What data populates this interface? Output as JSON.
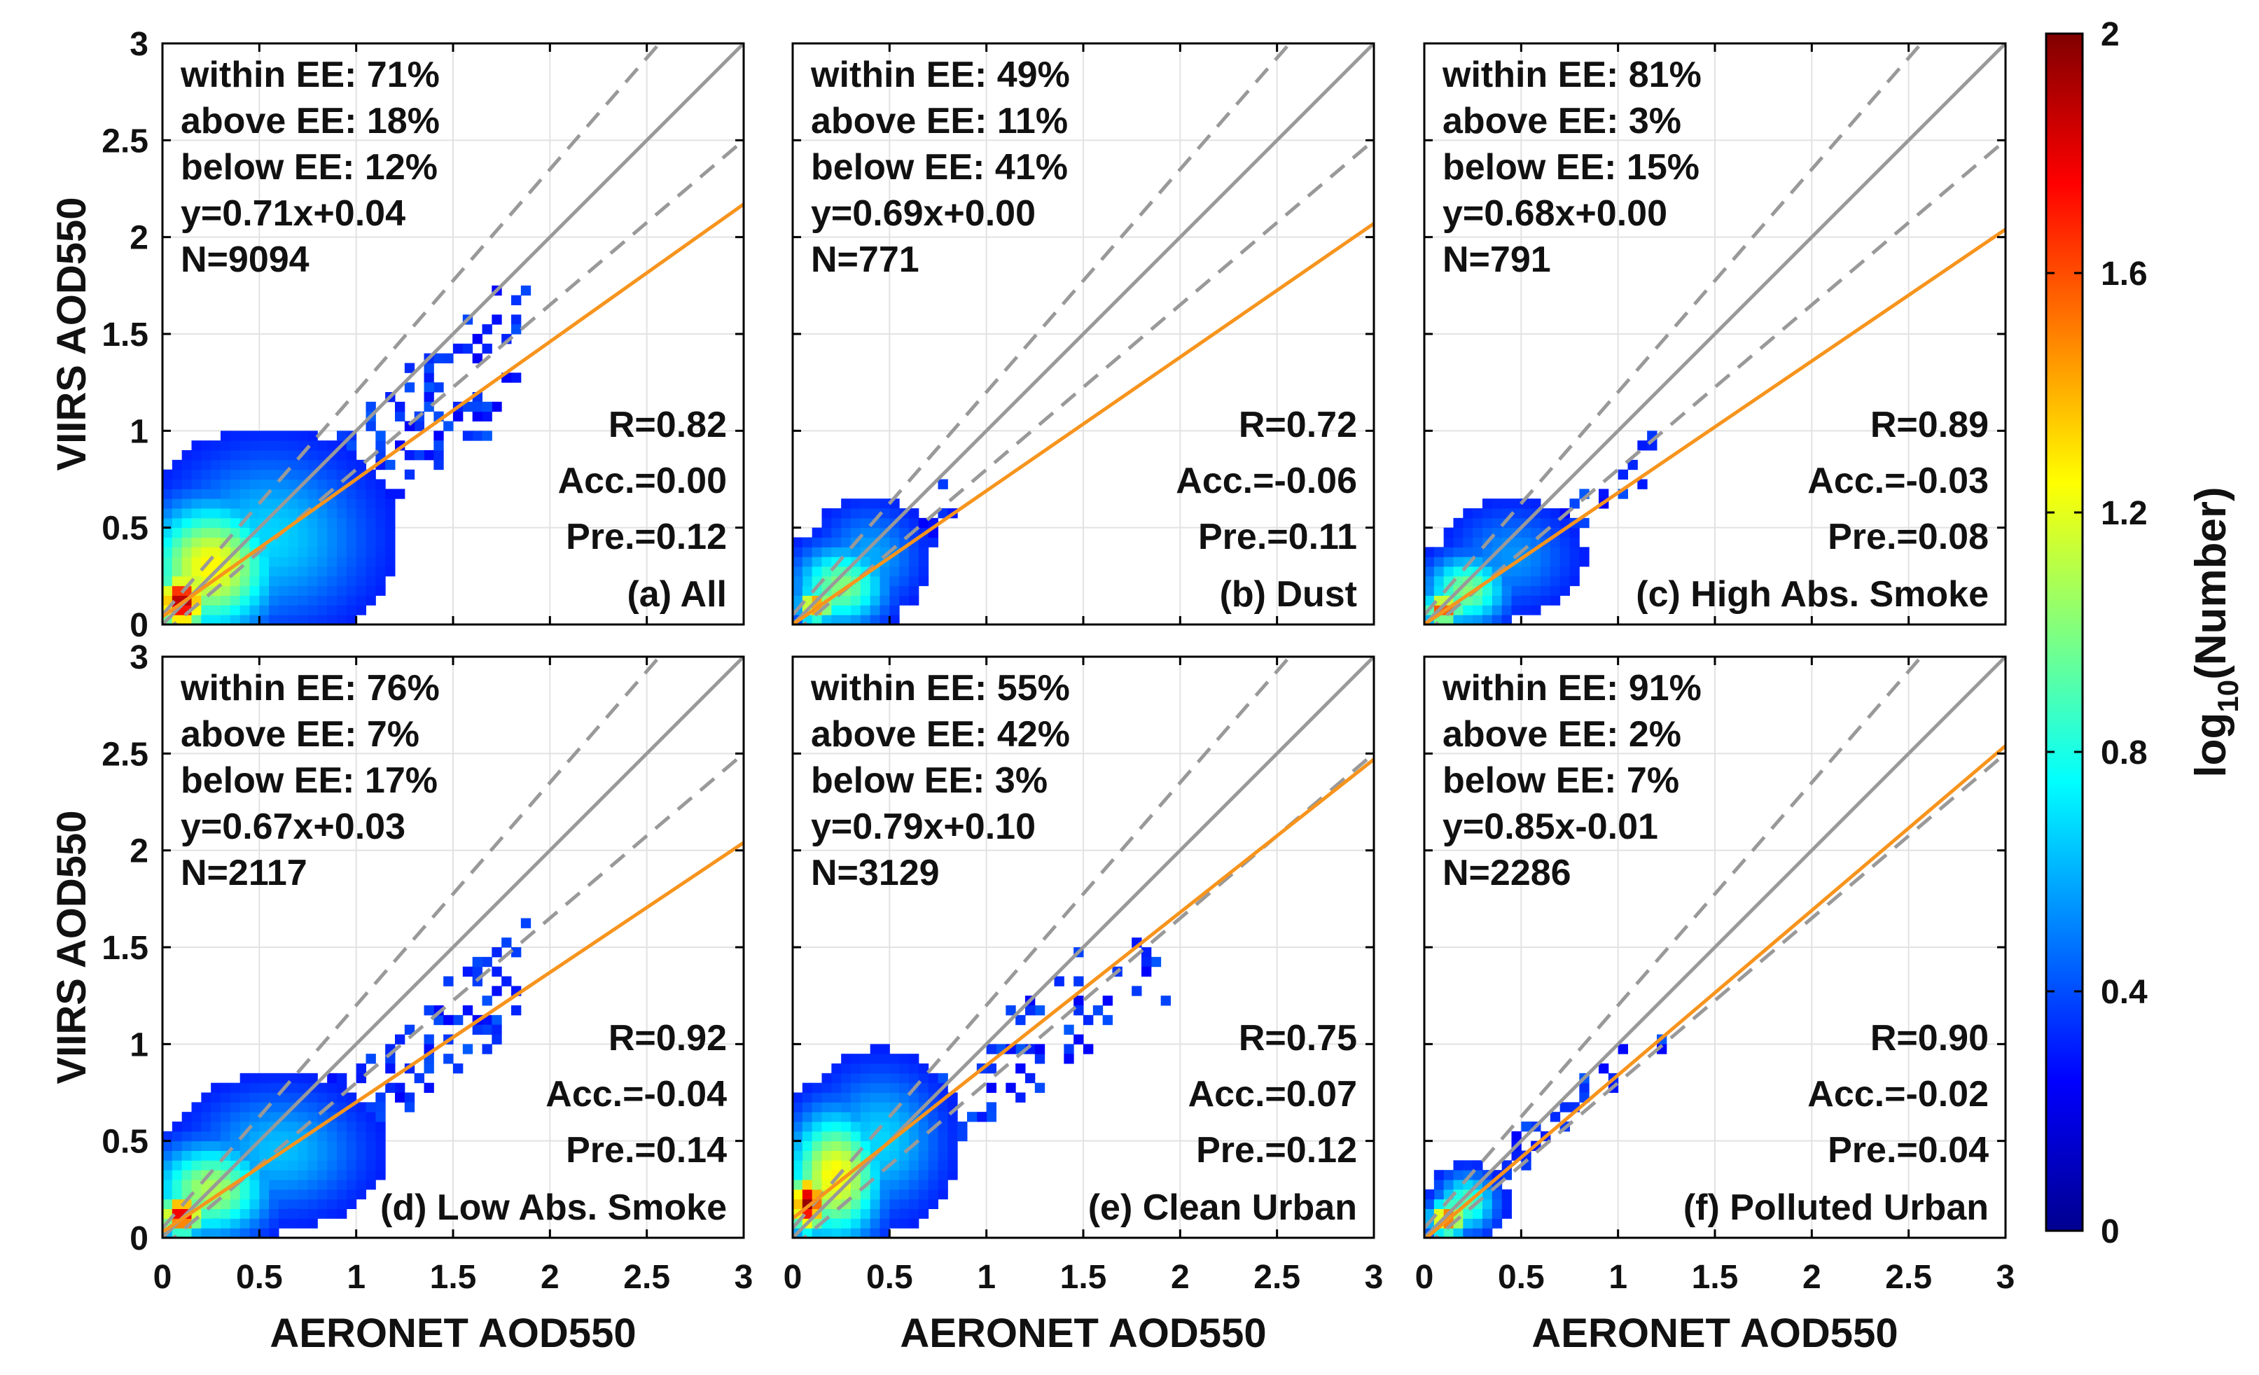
{
  "figure": {
    "xlabel": "AERONET AOD550",
    "ylabel": "VIIRS AOD550",
    "ticks": [
      "0",
      "0.5",
      "1",
      "1.5",
      "2",
      "2.5",
      "3"
    ],
    "colorbar": {
      "label_base": "log",
      "label_sub": "10",
      "label_rest": "(Number)",
      "ticks": [
        "0",
        "0.4",
        "0.8",
        "1.2",
        "1.6",
        "2"
      ],
      "range": [
        0,
        2
      ]
    },
    "colors": {
      "one_to_one": "#999999",
      "ee_lines": "#999999",
      "fit_line": "#f7941d"
    }
  },
  "chart_data": [
    {
      "type": "heatmap",
      "title": "(a) All",
      "xlabel": "AERONET AOD550",
      "ylabel": "VIIRS AOD550",
      "xlim": [
        0,
        3
      ],
      "ylim": [
        0,
        3
      ],
      "stats": [
        "within EE: 71%",
        "above EE: 18%",
        "below EE: 12%",
        "y=0.71x+0.04",
        "N=9094"
      ],
      "metrics": [
        "R=0.82",
        "Acc.=0.00",
        "Pre.=0.12"
      ],
      "fit": {
        "slope": 0.71,
        "intercept": 0.04
      },
      "density_clusters": [
        {
          "cx": 0.1,
          "cy": 0.12,
          "sx": 0.08,
          "sy": 0.1,
          "peak": 2.0
        },
        {
          "cx": 0.25,
          "cy": 0.3,
          "sx": 0.22,
          "sy": 0.22,
          "peak": 1.2
        },
        {
          "cx": 0.55,
          "cy": 0.45,
          "sx": 0.35,
          "sy": 0.3,
          "peak": 0.5
        }
      ],
      "scatter": {
        "count": 320,
        "xmax": 1.9,
        "ymax": 1.75,
        "slope": 0.8,
        "spread": 0.22
      }
    },
    {
      "type": "heatmap",
      "title": "(b) Dust",
      "xlabel": "AERONET AOD550",
      "ylabel": "VIIRS AOD550",
      "xlim": [
        0,
        3
      ],
      "ylim": [
        0,
        3
      ],
      "stats": [
        "within EE: 49%",
        "above EE: 11%",
        "below EE: 41%",
        "y=0.69x+0.00",
        "N=771"
      ],
      "metrics": [
        "R=0.72",
        "Acc.=-0.06",
        "Pre.=0.11"
      ],
      "fit": {
        "slope": 0.69,
        "intercept": 0.0
      },
      "density_clusters": [
        {
          "cx": 0.12,
          "cy": 0.1,
          "sx": 0.06,
          "sy": 0.06,
          "peak": 1.5
        },
        {
          "cx": 0.25,
          "cy": 0.2,
          "sx": 0.16,
          "sy": 0.14,
          "peak": 0.9
        },
        {
          "cx": 0.4,
          "cy": 0.35,
          "sx": 0.18,
          "sy": 0.18,
          "peak": 0.4
        }
      ],
      "scatter": {
        "count": 70,
        "xmax": 0.85,
        "ymax": 0.9,
        "slope": 0.75,
        "spread": 0.15
      }
    },
    {
      "type": "heatmap",
      "title": "(c) High Abs. Smoke",
      "xlabel": "AERONET AOD550",
      "ylabel": "VIIRS AOD550",
      "xlim": [
        0,
        3
      ],
      "ylim": [
        0,
        3
      ],
      "stats": [
        "within EE: 81%",
        "above EE: 3%",
        "below EE: 15%",
        "y=0.68x+0.00",
        "N=791"
      ],
      "metrics": [
        "R=0.89",
        "Acc.=-0.03",
        "Pre.=0.08"
      ],
      "fit": {
        "slope": 0.68,
        "intercept": 0.0
      },
      "density_clusters": [
        {
          "cx": 0.1,
          "cy": 0.08,
          "sx": 0.06,
          "sy": 0.05,
          "peak": 1.7
        },
        {
          "cx": 0.22,
          "cy": 0.18,
          "sx": 0.14,
          "sy": 0.12,
          "peak": 0.9
        },
        {
          "cx": 0.45,
          "cy": 0.35,
          "sx": 0.22,
          "sy": 0.18,
          "peak": 0.35
        }
      ],
      "scatter": {
        "count": 60,
        "xmax": 1.25,
        "ymax": 1.0,
        "slope": 0.72,
        "spread": 0.1
      }
    },
    {
      "type": "heatmap",
      "title": "(d) Low Abs. Smoke",
      "xlabel": "AERONET AOD550",
      "ylabel": "VIIRS AOD550",
      "xlim": [
        0,
        3
      ],
      "ylim": [
        0,
        3
      ],
      "stats": [
        "within EE: 76%",
        "above EE: 7%",
        "below EE: 17%",
        "y=0.67x+0.03",
        "N=2117"
      ],
      "metrics": [
        "R=0.92",
        "Acc.=-0.04",
        "Pre.=0.14"
      ],
      "fit": {
        "slope": 0.67,
        "intercept": 0.03
      },
      "density_clusters": [
        {
          "cx": 0.1,
          "cy": 0.12,
          "sx": 0.07,
          "sy": 0.07,
          "peak": 1.9
        },
        {
          "cx": 0.25,
          "cy": 0.25,
          "sx": 0.2,
          "sy": 0.16,
          "peak": 1.0
        },
        {
          "cx": 0.6,
          "cy": 0.45,
          "sx": 0.3,
          "sy": 0.22,
          "peak": 0.45
        }
      ],
      "scatter": {
        "count": 220,
        "xmax": 1.9,
        "ymax": 1.75,
        "slope": 0.72,
        "spread": 0.18
      }
    },
    {
      "type": "heatmap",
      "title": "(e) Clean Urban",
      "xlabel": "AERONET AOD550",
      "ylabel": "VIIRS AOD550",
      "xlim": [
        0,
        3
      ],
      "ylim": [
        0,
        3
      ],
      "stats": [
        "within EE: 55%",
        "above EE: 42%",
        "below EE: 3%",
        "y=0.79x+0.10",
        "N=3129"
      ],
      "metrics": [
        "R=0.75",
        "Acc.=0.07",
        "Pre.=0.12"
      ],
      "fit": {
        "slope": 0.79,
        "intercept": 0.1
      },
      "density_clusters": [
        {
          "cx": 0.08,
          "cy": 0.18,
          "sx": 0.06,
          "sy": 0.1,
          "peak": 2.0
        },
        {
          "cx": 0.22,
          "cy": 0.32,
          "sx": 0.16,
          "sy": 0.22,
          "peak": 1.2
        },
        {
          "cx": 0.45,
          "cy": 0.5,
          "sx": 0.22,
          "sy": 0.25,
          "peak": 0.5
        }
      ],
      "scatter": {
        "count": 160,
        "xmax": 2.0,
        "ymax": 1.55,
        "slope": 0.82,
        "spread": 0.2
      }
    },
    {
      "type": "heatmap",
      "title": "(f) Polluted Urban",
      "xlabel": "AERONET AOD550",
      "ylabel": "VIIRS AOD550",
      "xlim": [
        0,
        3
      ],
      "ylim": [
        0,
        3
      ],
      "stats": [
        "within EE: 91%",
        "above EE: 2%",
        "below EE: 7%",
        "y=0.85x-0.01",
        "N=2286"
      ],
      "metrics": [
        "R=0.90",
        "Acc.=-0.02",
        "Pre.=0.04"
      ],
      "fit": {
        "slope": 0.85,
        "intercept": -0.01
      },
      "density_clusters": [
        {
          "cx": 0.12,
          "cy": 0.1,
          "sx": 0.06,
          "sy": 0.06,
          "peak": 1.6
        },
        {
          "cx": 0.22,
          "cy": 0.18,
          "sx": 0.1,
          "sy": 0.1,
          "peak": 0.8
        }
      ],
      "scatter": {
        "count": 55,
        "xmax": 1.25,
        "ymax": 1.1,
        "slope": 0.9,
        "spread": 0.1
      }
    }
  ]
}
